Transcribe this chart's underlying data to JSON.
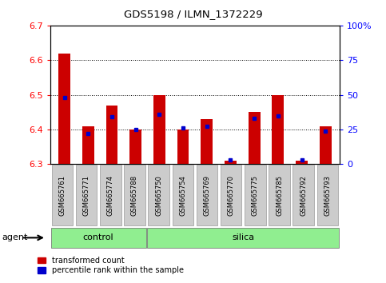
{
  "title": "GDS5198 / ILMN_1372229",
  "samples": [
    "GSM665761",
    "GSM665771",
    "GSM665774",
    "GSM665788",
    "GSM665750",
    "GSM665754",
    "GSM665769",
    "GSM665770",
    "GSM665775",
    "GSM665785",
    "GSM665792",
    "GSM665793"
  ],
  "group_labels": [
    "control",
    "silica"
  ],
  "group_sizes": [
    4,
    8
  ],
  "transformed_count": [
    6.62,
    6.41,
    6.47,
    6.4,
    6.5,
    6.4,
    6.43,
    6.31,
    6.45,
    6.5,
    6.31,
    6.41
  ],
  "percentile_rank": [
    48,
    22,
    34,
    25,
    36,
    26,
    27,
    3,
    33,
    35,
    3,
    24
  ],
  "ylim_left": [
    6.3,
    6.7
  ],
  "ylim_right": [
    0,
    100
  ],
  "yticks_left": [
    6.3,
    6.4,
    6.5,
    6.6,
    6.7
  ],
  "yticks_right": [
    0,
    25,
    50,
    75,
    100
  ],
  "bar_color": "#cc0000",
  "dot_color": "#0000cc",
  "group_fill": "#90ee90",
  "sample_box_fill": "#cccccc",
  "legend_red": "transformed count",
  "legend_blue": "percentile rank within the sample",
  "agent_label": "agent",
  "bar_width": 0.5
}
